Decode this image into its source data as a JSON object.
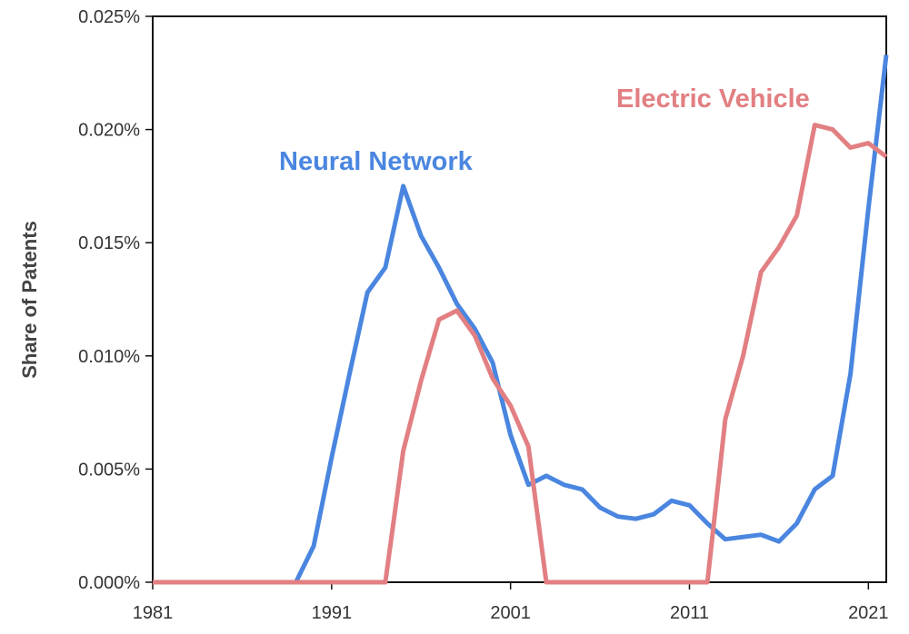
{
  "chart_data": {
    "type": "line",
    "title": "",
    "xlabel": "",
    "ylabel": "Share of Patents",
    "xlim": [
      1981,
      2022
    ],
    "ylim": [
      0,
      0.025
    ],
    "x_ticks": [
      1981,
      1991,
      2001,
      2011,
      2021
    ],
    "x_tick_labels": [
      "1981",
      "1991",
      "2001",
      "2011",
      "2021"
    ],
    "y_ticks": [
      0,
      0.005,
      0.01,
      0.015,
      0.02,
      0.025
    ],
    "y_tick_labels": [
      "0.000%",
      "0.005%",
      "0.010%",
      "0.015%",
      "0.020%",
      "0.025%"
    ],
    "grid": false,
    "x": [
      1981,
      1982,
      1983,
      1984,
      1985,
      1986,
      1987,
      1988,
      1989,
      1990,
      1991,
      1992,
      1993,
      1994,
      1995,
      1996,
      1997,
      1998,
      1999,
      2000,
      2001,
      2002,
      2003,
      2004,
      2005,
      2006,
      2007,
      2008,
      2009,
      2010,
      2011,
      2012,
      2013,
      2014,
      2015,
      2016,
      2017,
      2018,
      2019,
      2020,
      2021,
      2022
    ],
    "series": [
      {
        "name": "Neural Network",
        "color": "#4a86e0",
        "values": [
          0,
          0,
          0,
          0,
          0,
          0,
          0,
          0,
          0,
          0.0016,
          0.0055,
          0.0092,
          0.0128,
          0.0139,
          0.0175,
          0.0153,
          0.0139,
          0.0123,
          0.0112,
          0.0097,
          0.0065,
          0.0043,
          0.0047,
          0.0043,
          0.0041,
          0.0033,
          0.0029,
          0.0028,
          0.003,
          0.0036,
          0.0034,
          0.0026,
          0.0019,
          0.002,
          0.0021,
          0.0018,
          0.0026,
          0.0041,
          0.0047,
          0.0092,
          0.0165,
          0.0233
        ]
      },
      {
        "name": "Electric Vehicle",
        "color": "#e27f82",
        "values": [
          0,
          0,
          0,
          0,
          0,
          0,
          0,
          0,
          0,
          0,
          0,
          0,
          0,
          0,
          0.0058,
          0.0089,
          0.0116,
          0.012,
          0.0109,
          0.009,
          0.0078,
          0.006,
          0,
          0,
          0,
          0,
          0,
          0,
          0,
          0,
          0,
          0,
          0.0072,
          0.01,
          0.0137,
          0.0148,
          0.0162,
          0.0202,
          0.02,
          0.0192,
          0.0194,
          0.0188
        ]
      }
    ]
  }
}
